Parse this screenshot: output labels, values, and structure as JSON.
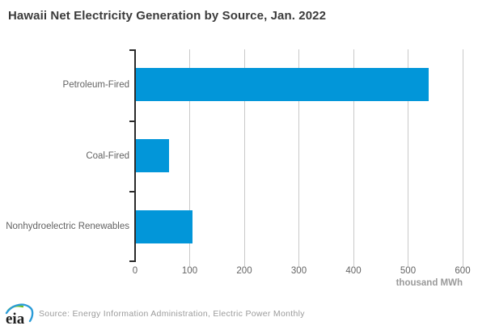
{
  "title": "Hawaii Net Electricity Generation by Source, Jan. 2022",
  "chart_data": {
    "type": "bar",
    "orientation": "horizontal",
    "title": "Hawaii Net Electricity Generation by Source, Jan. 2022",
    "categories": [
      "Petroleum-Fired",
      "Coal-Fired",
      "Nonhydroelectric Renewables"
    ],
    "values": [
      537,
      60,
      103
    ],
    "xlabel": "thousand MWh",
    "ylabel": "",
    "xlim": [
      0,
      600
    ],
    "xticks": [
      0,
      100,
      200,
      300,
      400,
      500,
      600
    ],
    "grid": true,
    "legend": false,
    "bar_color": "#0296d9",
    "unit": "thousand MWh"
  },
  "colors": {
    "bar": "#0296d9",
    "gridline": "#c9c9c9",
    "axis": "#2b2b2b",
    "title_text": "#3b3b3b",
    "label_text": "#636363",
    "source_text": "#9b9b9b",
    "logo_green": "#6abf2a",
    "logo_blue": "#2b9cd8",
    "logo_text": "#1f1f1f"
  },
  "footer": {
    "logo_text": "eia",
    "source": "Source: Energy Information Administration, Electric Power Monthly"
  }
}
